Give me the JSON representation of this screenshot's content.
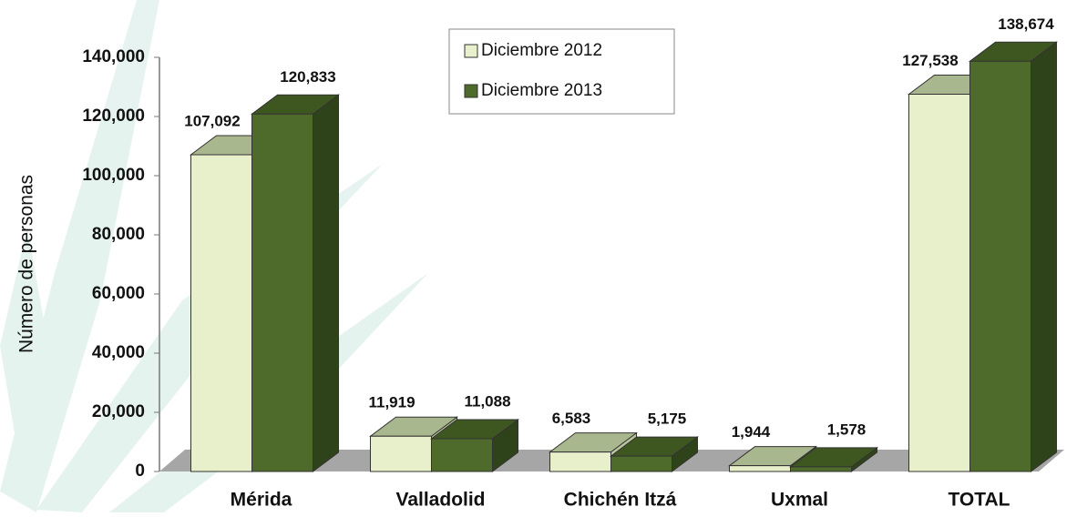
{
  "chart_data": {
    "type": "bar3d",
    "y_label": "Número de personas",
    "categories": [
      "Mérida",
      "Valladolid",
      "Chichén Itzá",
      "Uxmal",
      "TOTAL"
    ],
    "series": [
      {
        "name": "Diciembre 2012",
        "color": "#e8efcb",
        "values": [
          107092,
          11919,
          6583,
          1944,
          127538
        ],
        "value_labels": [
          "107,092",
          "11,919",
          "6,583",
          "1,944",
          "127,538"
        ]
      },
      {
        "name": "Diciembre 2013",
        "color": "#4f6b2b",
        "values": [
          120833,
          11088,
          5175,
          1578,
          138674
        ],
        "value_labels": [
          "120,833",
          "11,088",
          "5,175",
          "1,578",
          "138,674"
        ]
      }
    ],
    "ylim": [
      0,
      140000
    ],
    "yticks": [
      0,
      {
        "value": 20000,
        "label": "20,000"
      },
      {
        "value": 40000,
        "label": "40,000"
      },
      {
        "value": 60000,
        "label": "60,000"
      },
      {
        "value": 80000,
        "label": "80,000"
      },
      {
        "value": 100000,
        "label": "100,000"
      },
      {
        "value": 120000,
        "label": "120,000"
      },
      {
        "value": 140000,
        "label": "140,000"
      }
    ],
    "legend": "top-center"
  }
}
